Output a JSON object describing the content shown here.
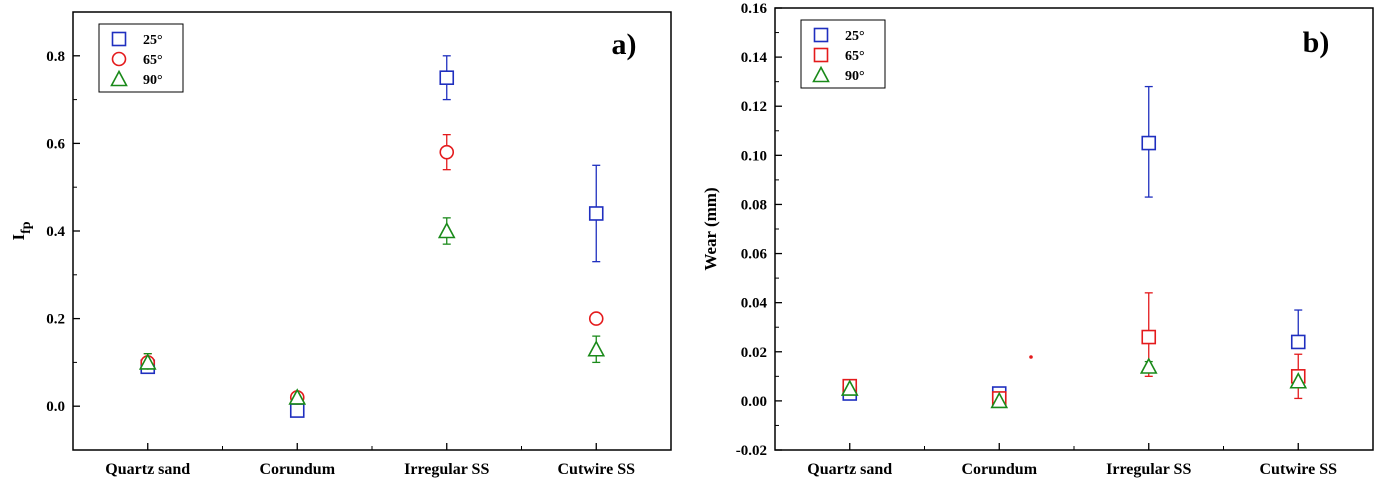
{
  "colors": {
    "s25": "#1f2fbf",
    "s65": "#e41a1c",
    "s90": "#1a8a1a"
  },
  "chart_data": [
    {
      "type": "scatter",
      "panel_label": "a)",
      "ylabel_main": "I",
      "ylabel_sub": "fp",
      "categories": [
        "Quartz sand",
        "Corundum",
        "Irregular SS",
        "Cutwire SS"
      ],
      "ylim": [
        -0.1,
        0.9
      ],
      "yticks": [
        0.0,
        0.2,
        0.4,
        0.6,
        0.8
      ],
      "ytick_labels": [
        "0.0",
        "0.2",
        "0.4",
        "0.6",
        "0.8"
      ],
      "legend_position": "top-left",
      "series": [
        {
          "name": "25°",
          "marker": "square",
          "color": "#1f2fbf",
          "values": [
            0.09,
            -0.01,
            0.75,
            0.44
          ],
          "err_low": [
            0.09,
            -0.01,
            0.7,
            0.33
          ],
          "err_high": [
            0.09,
            -0.01,
            0.8,
            0.55
          ]
        },
        {
          "name": "65°",
          "marker": "circle",
          "color": "#e41a1c",
          "values": [
            0.1,
            0.02,
            0.58,
            0.2
          ],
          "err_low": [
            0.1,
            0.02,
            0.54,
            0.2
          ],
          "err_high": [
            0.12,
            0.02,
            0.62,
            0.2
          ]
        },
        {
          "name": "90°",
          "marker": "triangle",
          "color": "#1a8a1a",
          "values": [
            0.1,
            0.02,
            0.4,
            0.13
          ],
          "err_low": [
            0.1,
            0.02,
            0.37,
            0.1
          ],
          "err_high": [
            0.12,
            0.02,
            0.43,
            0.16
          ]
        }
      ]
    },
    {
      "type": "scatter",
      "panel_label": "b)",
      "ylabel_main": "Wear (mm)",
      "ylabel_sub": "",
      "categories": [
        "Quartz sand",
        "Corundum",
        "Irregular SS",
        "Cutwire SS"
      ],
      "ylim": [
        -0.02,
        0.16
      ],
      "yticks": [
        -0.02,
        0.0,
        0.02,
        0.04,
        0.06,
        0.08,
        0.1,
        0.12,
        0.14,
        0.16
      ],
      "ytick_labels": [
        "-0.02",
        "0.00",
        "0.02",
        "0.04",
        "0.06",
        "0.08",
        "0.10",
        "0.12",
        "0.14",
        "0.16"
      ],
      "legend_position": "top-left",
      "series": [
        {
          "name": "25°",
          "marker": "square",
          "color": "#1f2fbf",
          "values": [
            0.003,
            0.003,
            0.105,
            0.024
          ],
          "err_low": [
            0.003,
            0.003,
            0.083,
            0.024
          ],
          "err_high": [
            0.003,
            0.003,
            0.128,
            0.037
          ]
        },
        {
          "name": "65°",
          "marker": "square",
          "color": "#e41a1c",
          "values": [
            0.006,
            0.001,
            0.026,
            0.01
          ],
          "err_low": [
            0.006,
            0.001,
            0.01,
            0.001
          ],
          "err_high": [
            0.006,
            0.001,
            0.044,
            0.019
          ]
        },
        {
          "name": "90°",
          "marker": "triangle",
          "color": "#1a8a1a",
          "values": [
            0.005,
            0.0,
            0.014,
            0.008
          ],
          "err_low": [
            0.005,
            0.0,
            0.012,
            0.008
          ],
          "err_high": [
            0.005,
            0.0,
            0.016,
            0.008
          ]
        }
      ]
    }
  ]
}
